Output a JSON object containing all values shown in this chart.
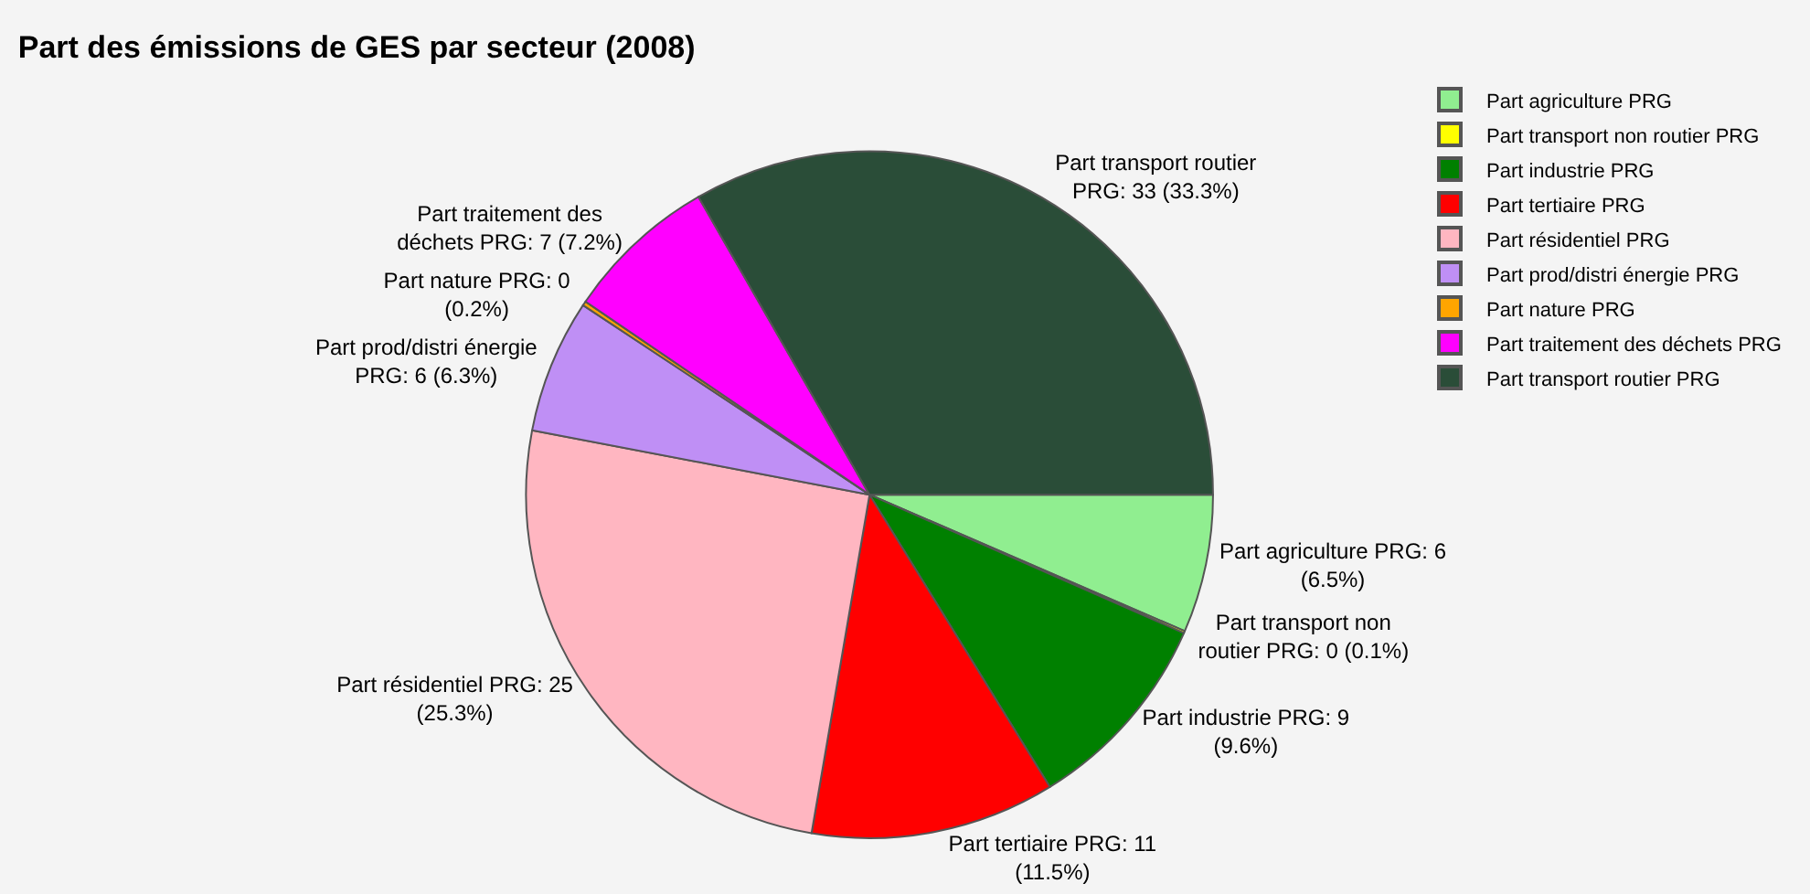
{
  "chart_data": {
    "type": "pie",
    "title": "Part des émissions de GES par secteur (2008)",
    "categories": [
      "Part agriculture PRG",
      "Part transport non routier PRG",
      "Part industrie PRG",
      "Part tertiaire PRG",
      "Part résidentiel PRG",
      "Part prod/distri énergie PRG",
      "Part nature PRG",
      "Part traitement des déchets PRG",
      "Part transport routier PRG"
    ],
    "values": [
      6.5,
      0.1,
      9.6,
      11.5,
      25.3,
      6.3,
      0.2,
      7.2,
      33.3
    ],
    "value_labels": [
      "Part agriculture PRG: 6 (6.5%)",
      "Part transport non routier PRG: 0 (0.1%)",
      "Part industrie PRG: 9 (9.6%)",
      "Part tertiaire PRG: 11 (11.5%)",
      "Part résidentiel PRG: 25 (25.3%)",
      "Part prod/distri énergie PRG: 6 (6.3%)",
      "Part nature PRG: 0 (0.2%)",
      "Part traitement des déchets PRG: 7 (7.2%)",
      "Part transport routier PRG: 33 (33.3%)"
    ],
    "colors": [
      "#90ee90",
      "#ffff00",
      "#008000",
      "#ff0000",
      "#ffb6c1",
      "#bf8ff5",
      "#ffa500",
      "#ff00ff",
      "#2a4d38"
    ],
    "legend": "top right"
  }
}
